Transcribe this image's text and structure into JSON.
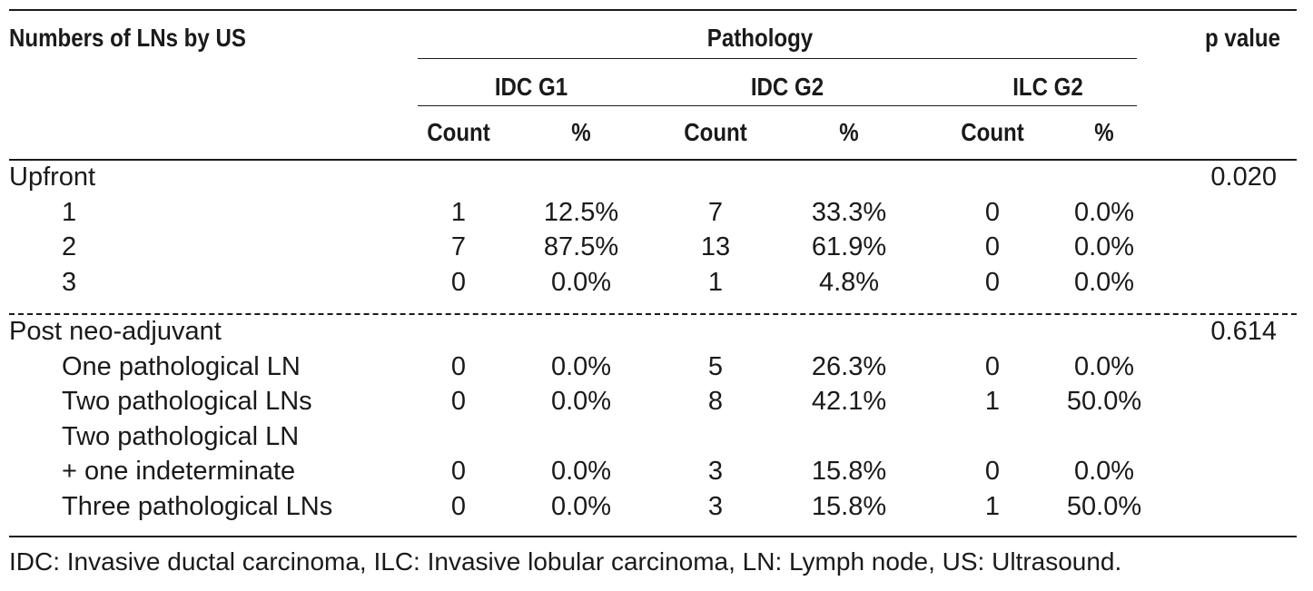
{
  "header": {
    "row_label": "Numbers of LNs by US",
    "group": "Pathology",
    "pvalue_label": "p value",
    "subgroups": [
      "IDC G1",
      "IDC G2",
      "ILC G2"
    ],
    "col_labels": [
      "Count",
      "%",
      "Count",
      "%",
      "Count",
      "%"
    ]
  },
  "sections": [
    {
      "label": "Upfront",
      "p_value": "0.020",
      "rows": [
        {
          "label": "1",
          "values": [
            "1",
            "12.5%",
            "7",
            "33.3%",
            "0",
            "0.0%"
          ]
        },
        {
          "label": "2",
          "values": [
            "7",
            "87.5%",
            "13",
            "61.9%",
            "0",
            "0.0%"
          ]
        },
        {
          "label": "3",
          "values": [
            "0",
            "0.0%",
            "1",
            "4.8%",
            "0",
            "0.0%"
          ]
        }
      ]
    },
    {
      "label": "Post neo-adjuvant",
      "p_value": "0.614",
      "rows": [
        {
          "label": "One pathological LN",
          "values": [
            "0",
            "0.0%",
            "5",
            "26.3%",
            "0",
            "0.0%"
          ]
        },
        {
          "label": "Two pathological LNs",
          "values": [
            "0",
            "0.0%",
            "8",
            "42.1%",
            "1",
            "50.0%"
          ]
        },
        {
          "label": "Two pathological LN",
          "values": [
            "",
            "",
            "",
            "",
            "",
            ""
          ]
        },
        {
          "label": "+ one indeterminate",
          "values": [
            "0",
            "0.0%",
            "3",
            "15.8%",
            "0",
            "0.0%"
          ]
        },
        {
          "label": "Three pathological LNs",
          "values": [
            "0",
            "0.0%",
            "3",
            "15.8%",
            "1",
            "50.0%"
          ]
        }
      ]
    }
  ],
  "footnote": "IDC: Invasive ductal carcinoma, ILC: Invasive lobular carcinoma, LN: Lymph node, US: Ultrasound."
}
